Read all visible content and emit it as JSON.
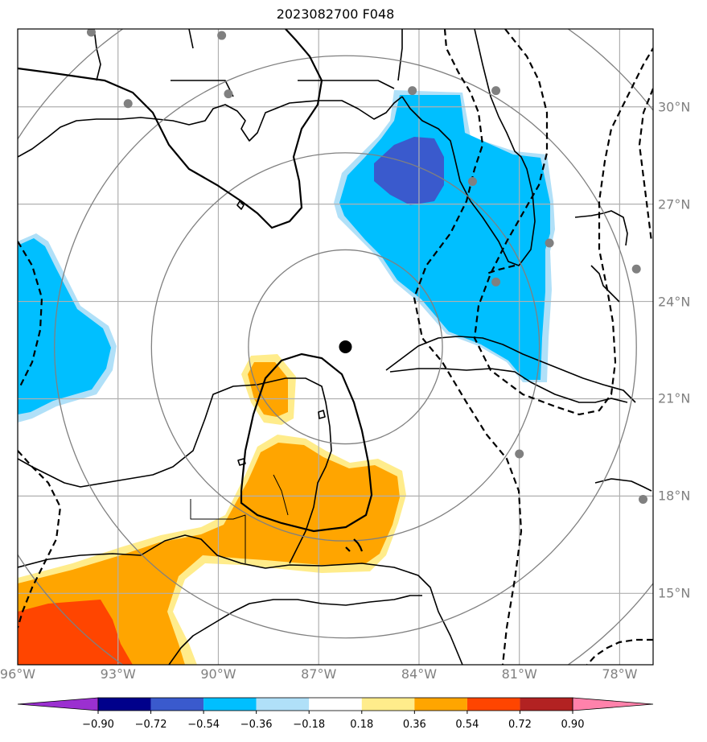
{
  "title": "2023082700 F048",
  "map": {
    "lon_range": [
      -96,
      -77
    ],
    "lat_range": [
      12.8,
      32.4
    ],
    "center_marker": {
      "lon": -86.2,
      "lat": 22.6
    },
    "lon_ticks": [
      {
        "value": -96,
        "label": "96°W"
      },
      {
        "value": -93,
        "label": "93°W"
      },
      {
        "value": -90,
        "label": "90°W"
      },
      {
        "value": -87,
        "label": "87°W"
      },
      {
        "value": -84,
        "label": "84°W"
      },
      {
        "value": -81,
        "label": "81°W"
      },
      {
        "value": -78,
        "label": "78°W"
      }
    ],
    "lat_ticks": [
      {
        "value": 30,
        "label": "30°N"
      },
      {
        "value": 27,
        "label": "27°N"
      },
      {
        "value": 24,
        "label": "24°N"
      },
      {
        "value": 21,
        "label": "21°N"
      },
      {
        "value": 18,
        "label": "18°N"
      },
      {
        "value": 15,
        "label": "15°N"
      }
    ],
    "range_rings_deg": [
      2.9,
      5.8,
      8.7,
      11.6
    ],
    "stations": [
      {
        "lon": -93.8,
        "lat": 32.3
      },
      {
        "lon": -92.7,
        "lat": 30.1
      },
      {
        "lon": -89.9,
        "lat": 32.2
      },
      {
        "lon": -89.7,
        "lat": 30.4
      },
      {
        "lon": -84.2,
        "lat": 30.5
      },
      {
        "lon": -81.7,
        "lat": 30.5
      },
      {
        "lon": -82.4,
        "lat": 27.7
      },
      {
        "lon": -80.1,
        "lat": 25.8
      },
      {
        "lon": -81.7,
        "lat": 24.6
      },
      {
        "lon": -77.5,
        "lat": 25.0
      },
      {
        "lon": -81.0,
        "lat": 19.3
      },
      {
        "lon": -77.3,
        "lat": 17.9
      }
    ],
    "colors": {
      "grid": "#b0b0b0",
      "rings": "#808080",
      "station": "#808080",
      "land": "#000000"
    }
  },
  "colorbar": {
    "levels": [
      -0.9,
      -0.72,
      -0.54,
      -0.36,
      -0.18,
      0.18,
      0.36,
      0.54,
      0.72,
      0.9
    ],
    "tick_labels": [
      "−0.90",
      "−0.72",
      "−0.54",
      "−0.36",
      "−0.18",
      "0.18",
      "0.36",
      "0.54",
      "0.72",
      "0.90"
    ],
    "colors": [
      "#9b30d0",
      "#00008b",
      "#3a5acd",
      "#00bfff",
      "#b0e0f8",
      "#ffffff",
      "#ffec8b",
      "#ffa500",
      "#ff4500",
      "#b22222",
      "#ff82ab"
    ]
  }
}
